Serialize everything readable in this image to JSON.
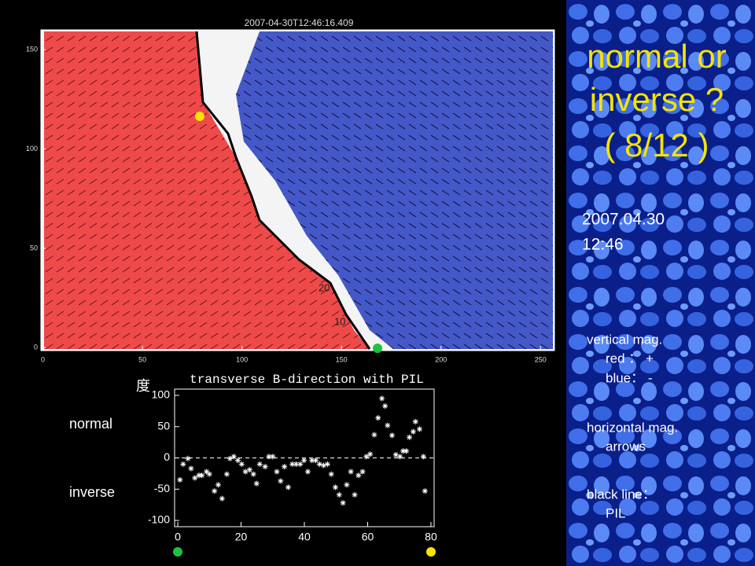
{
  "magnetogram": {
    "title": "2007-04-30T12:46:16.409",
    "xlim": [
      -1,
      257
    ],
    "ylim": [
      -1.5,
      160
    ],
    "xticks": [
      0,
      50,
      100,
      150,
      200,
      250
    ],
    "yticks": [
      0,
      50,
      100,
      150
    ],
    "contour_labels": [
      "20",
      "10"
    ]
  },
  "chart_data": {
    "type": "scatter",
    "title": "transverse B-direction with PIL",
    "ylabel": "度",
    "color": "#ffffff",
    "xlim": [
      -1,
      81
    ],
    "ylim": [
      -110,
      110
    ],
    "xticks": [
      0,
      20,
      40,
      60,
      80
    ],
    "yticks": [
      -100,
      -50,
      0,
      50,
      100
    ],
    "x": [
      0.7,
      1.7,
      3.2,
      4.2,
      5.4,
      6.7,
      7.6,
      9.1,
      10,
      11.6,
      12.8,
      14,
      15.5,
      16.5,
      17.7,
      19,
      20.2,
      21.4,
      22.7,
      23.9,
      24.9,
      25.9,
      27.6,
      28.8,
      30,
      31.3,
      32.5,
      33.7,
      34.9,
      36.2,
      37.4,
      38.7,
      39.9,
      41.1,
      42.4,
      43.6,
      44.8,
      46.1,
      47.3,
      48.5,
      49.8,
      51,
      52.2,
      53.4,
      54.7,
      55.9,
      57.1,
      58.4,
      59.6,
      60.8,
      62.1,
      63.3,
      64.5,
      65.5,
      66.3,
      67.7,
      68.9,
      70.2,
      71.2,
      72.2,
      73.2,
      74.4,
      75.1,
      76.4,
      77.6,
      78.1
    ],
    "values": [
      -35,
      -10,
      -1,
      -17,
      -32,
      -28,
      -28,
      -22,
      -26,
      -53,
      -43,
      -65,
      -26,
      -1,
      2,
      -4,
      -10,
      -22,
      -19,
      -26,
      -41,
      -10,
      -14,
      2,
      2,
      -22,
      -37,
      -14,
      -47,
      -10,
      -10,
      -10,
      -4,
      -22,
      -4,
      -4,
      -10,
      -12,
      -10,
      -26,
      -47,
      -59,
      -72,
      -43,
      -22,
      -59,
      -28,
      -22,
      2,
      6,
      37,
      64,
      95,
      83,
      52,
      36,
      5,
      2,
      11,
      11,
      33,
      42,
      58,
      46,
      2,
      -53
    ]
  },
  "slide": {
    "title_lines": [
      "normal or",
      "inverse ?",
      "( 8/12 )"
    ],
    "date": "2007.04.30",
    "time": "12:46",
    "side_labels": [
      "normal",
      "inverse"
    ],
    "notes": [
      "vertical mag.",
      "red ： +",
      "blue： -",
      "horizontal mag.",
      "arrows",
      "black line：",
      "PIL"
    ]
  }
}
